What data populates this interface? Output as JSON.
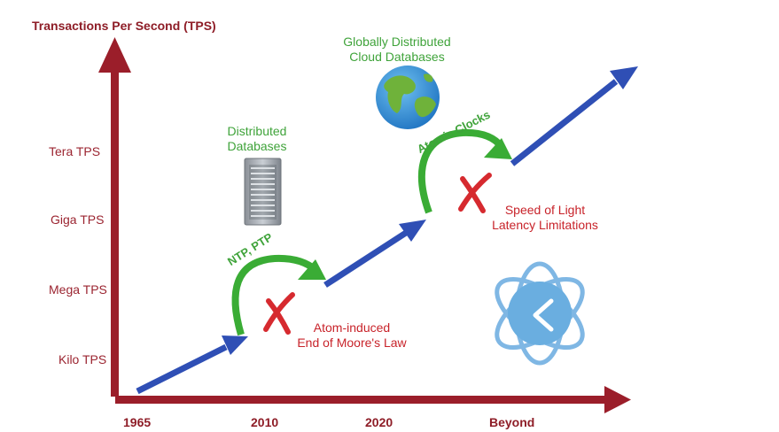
{
  "y_axis": {
    "title": "Transactions Per Second (TPS)",
    "levels": [
      "Kilo TPS",
      "Mega TPS",
      "Giga TPS",
      "Tera TPS"
    ]
  },
  "x_axis": {
    "labels": [
      "1965",
      "2010",
      "2020",
      "Beyond"
    ]
  },
  "stages": {
    "distributed": "Distributed\nDatabases",
    "cloud": "Globally Distributed\nCloud Databases"
  },
  "transitions": {
    "ntp": "NTP, PTP",
    "atomic": "Atomic Clocks"
  },
  "limitations": {
    "moore": "Atom-induced\nEnd of Moore's Law",
    "light": "Speed of Light\nLatency Limitations"
  },
  "icons": [
    "server-rack-icon",
    "globe-icon",
    "atomic-clock-icon",
    "x-mark-icon"
  ],
  "colors": {
    "axis": "#9b1e2a",
    "trend": "#2f4fb5",
    "transition": "#3aac35",
    "limitation": "#d62a2f"
  }
}
